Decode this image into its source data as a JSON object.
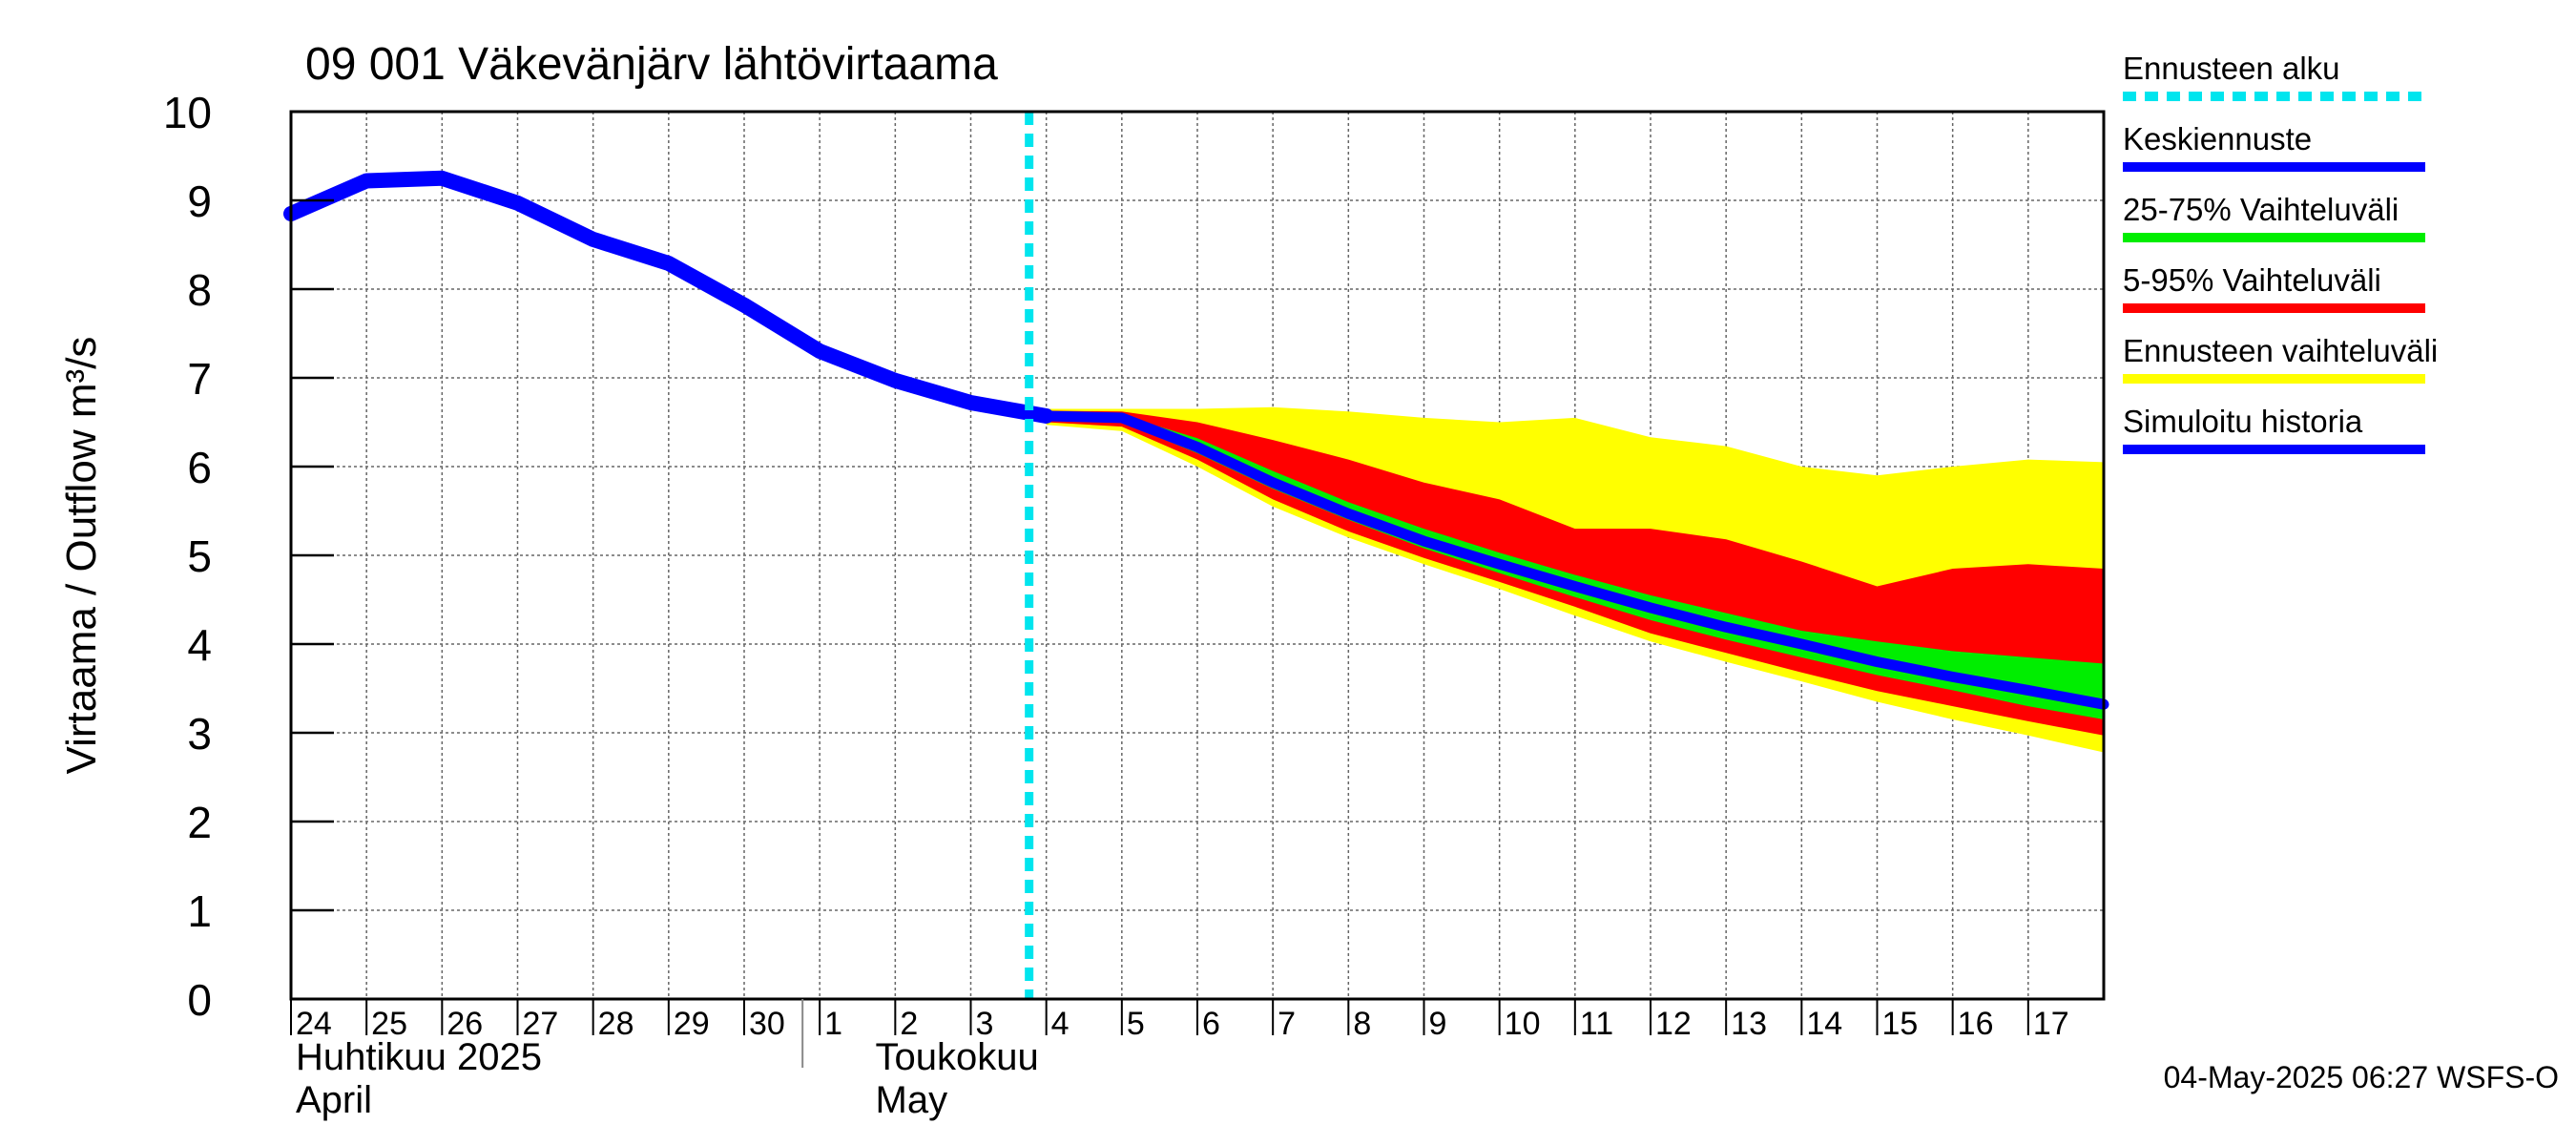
{
  "chart_data": {
    "type": "area",
    "title": "09 001 Väkevänjärv lähtövirtaama",
    "ylabel": "Virtaama / Outflow    m³/s",
    "ylim": [
      0,
      10
    ],
    "yticks": [
      "0",
      "1",
      "2",
      "3",
      "4",
      "5",
      "6",
      "7",
      "8",
      "9",
      "10"
    ],
    "x_ticks": [
      {
        "date": "2025-04-24",
        "label": "24"
      },
      {
        "date": "2025-04-25",
        "label": "25"
      },
      {
        "date": "2025-04-26",
        "label": "26"
      },
      {
        "date": "2025-04-27",
        "label": "27"
      },
      {
        "date": "2025-04-28",
        "label": "28"
      },
      {
        "date": "2025-04-29",
        "label": "29"
      },
      {
        "date": "2025-04-30",
        "label": "30"
      },
      {
        "date": "2025-05-01",
        "label": "1"
      },
      {
        "date": "2025-05-02",
        "label": "2"
      },
      {
        "date": "2025-05-03",
        "label": "3"
      },
      {
        "date": "2025-05-04",
        "label": "4"
      },
      {
        "date": "2025-05-05",
        "label": "5"
      },
      {
        "date": "2025-05-06",
        "label": "6"
      },
      {
        "date": "2025-05-07",
        "label": "7"
      },
      {
        "date": "2025-05-08",
        "label": "8"
      },
      {
        "date": "2025-05-09",
        "label": "9"
      },
      {
        "date": "2025-05-10",
        "label": "10"
      },
      {
        "date": "2025-05-11",
        "label": "11"
      },
      {
        "date": "2025-05-12",
        "label": "12"
      },
      {
        "date": "2025-05-13",
        "label": "13"
      },
      {
        "date": "2025-05-14",
        "label": "14"
      },
      {
        "date": "2025-05-15",
        "label": "15"
      },
      {
        "date": "2025-05-16",
        "label": "16"
      },
      {
        "date": "2025-05-17",
        "label": "17"
      }
    ],
    "xlim": [
      "2025-04-24",
      "2025-05-18"
    ],
    "month_labels": [
      {
        "fi": "Huhtikuu  2025",
        "en": "April"
      },
      {
        "fi": "Toukokuu",
        "en": "May"
      }
    ],
    "forecast_start": "2025-05-04",
    "grid": true,
    "legend_position": "right",
    "legend": [
      {
        "label": "Ennusteen alku",
        "color": "#00e5ee",
        "style": "dashed"
      },
      {
        "label": "Keskiennuste",
        "color": "#0000ff",
        "style": "solid"
      },
      {
        "label": "25-75% Vaihteluväli",
        "color": "#00ee00",
        "style": "solid"
      },
      {
        "label": "5-95% Vaihteluväli",
        "color": "#ff0000",
        "style": "solid"
      },
      {
        "label": "Ennusteen vaihteluväli",
        "color": "#ffff00",
        "style": "solid"
      },
      {
        "label": "Simuloitu historia",
        "color": "#0000ff",
        "style": "solid"
      }
    ],
    "colors": {
      "median": "#0000ff",
      "band_25_75": "#00ee00",
      "band_5_95": "#ff0000",
      "band_full": "#ffff00",
      "forecast_start": "#00e5ee"
    },
    "series": [
      {
        "name": "Simuloitu historia",
        "x": [
          "2025-04-24",
          "2025-04-25",
          "2025-04-26",
          "2025-04-27",
          "2025-04-28",
          "2025-04-29",
          "2025-04-30",
          "2025-05-01",
          "2025-05-02",
          "2025-05-03",
          "2025-05-04"
        ],
        "values": [
          8.85,
          9.22,
          9.25,
          8.97,
          8.56,
          8.29,
          7.82,
          7.3,
          6.97,
          6.72,
          6.57
        ]
      },
      {
        "name": "Keskiennuste",
        "x": [
          "2025-05-04",
          "2025-05-05",
          "2025-05-06",
          "2025-05-07",
          "2025-05-08",
          "2025-05-09",
          "2025-05-10",
          "2025-05-11",
          "2025-05-12",
          "2025-05-13",
          "2025-05-14",
          "2025-05-15",
          "2025-05-16",
          "2025-05-17",
          "2025-05-18"
        ],
        "values": [
          6.57,
          6.55,
          6.22,
          5.82,
          5.47,
          5.16,
          4.9,
          4.65,
          4.41,
          4.19,
          4.0,
          3.8,
          3.63,
          3.48,
          3.32
        ]
      },
      {
        "name": "Ennusteen vaihteluväli",
        "x": [
          "2025-05-04",
          "2025-05-05",
          "2025-05-06",
          "2025-05-07",
          "2025-05-08",
          "2025-05-09",
          "2025-05-10",
          "2025-05-11",
          "2025-05-12",
          "2025-05-13",
          "2025-05-14",
          "2025-05-15",
          "2025-05-16",
          "2025-05-17",
          "2025-05-18"
        ],
        "upper": [
          6.65,
          6.65,
          6.65,
          6.67,
          6.62,
          6.55,
          6.5,
          6.55,
          6.33,
          6.23,
          6.0,
          5.9,
          6.0,
          6.08,
          6.05
        ],
        "lower": [
          6.47,
          6.4,
          6.0,
          5.55,
          5.2,
          4.9,
          4.62,
          4.32,
          4.03,
          3.8,
          3.58,
          3.35,
          3.15,
          2.97,
          2.78
        ]
      },
      {
        "name": "5-95% Vaihteluväli",
        "x": [
          "2025-05-04",
          "2025-05-05",
          "2025-05-06",
          "2025-05-07",
          "2025-05-08",
          "2025-05-09",
          "2025-05-10",
          "2025-05-11",
          "2025-05-12",
          "2025-05-13",
          "2025-05-14",
          "2025-05-15",
          "2025-05-16",
          "2025-05-17",
          "2025-05-18"
        ],
        "upper": [
          6.63,
          6.62,
          6.5,
          6.3,
          6.08,
          5.82,
          5.63,
          5.3,
          5.3,
          5.18,
          4.93,
          4.65,
          4.85,
          4.9,
          4.85
        ],
        "lower": [
          6.5,
          6.45,
          6.08,
          5.63,
          5.27,
          4.97,
          4.7,
          4.42,
          4.12,
          3.9,
          3.68,
          3.47,
          3.3,
          3.13,
          2.97
        ]
      },
      {
        "name": "25-75% Vaihteluväli",
        "x": [
          "2025-05-04",
          "2025-05-05",
          "2025-05-06",
          "2025-05-07",
          "2025-05-08",
          "2025-05-09",
          "2025-05-10",
          "2025-05-11",
          "2025-05-12",
          "2025-05-13",
          "2025-05-14",
          "2025-05-15",
          "2025-05-16",
          "2025-05-17",
          "2025-05-18"
        ],
        "upper": [
          6.6,
          6.58,
          6.32,
          5.95,
          5.6,
          5.3,
          5.03,
          4.78,
          4.55,
          4.35,
          4.15,
          4.03,
          3.92,
          3.85,
          3.78
        ],
        "lower": [
          6.53,
          6.5,
          6.15,
          5.75,
          5.4,
          5.08,
          4.8,
          4.53,
          4.27,
          4.05,
          3.85,
          3.65,
          3.48,
          3.3,
          3.15
        ]
      }
    ]
  },
  "footer": {
    "timestamp": "04-May-2025 06:27 WSFS-O"
  }
}
